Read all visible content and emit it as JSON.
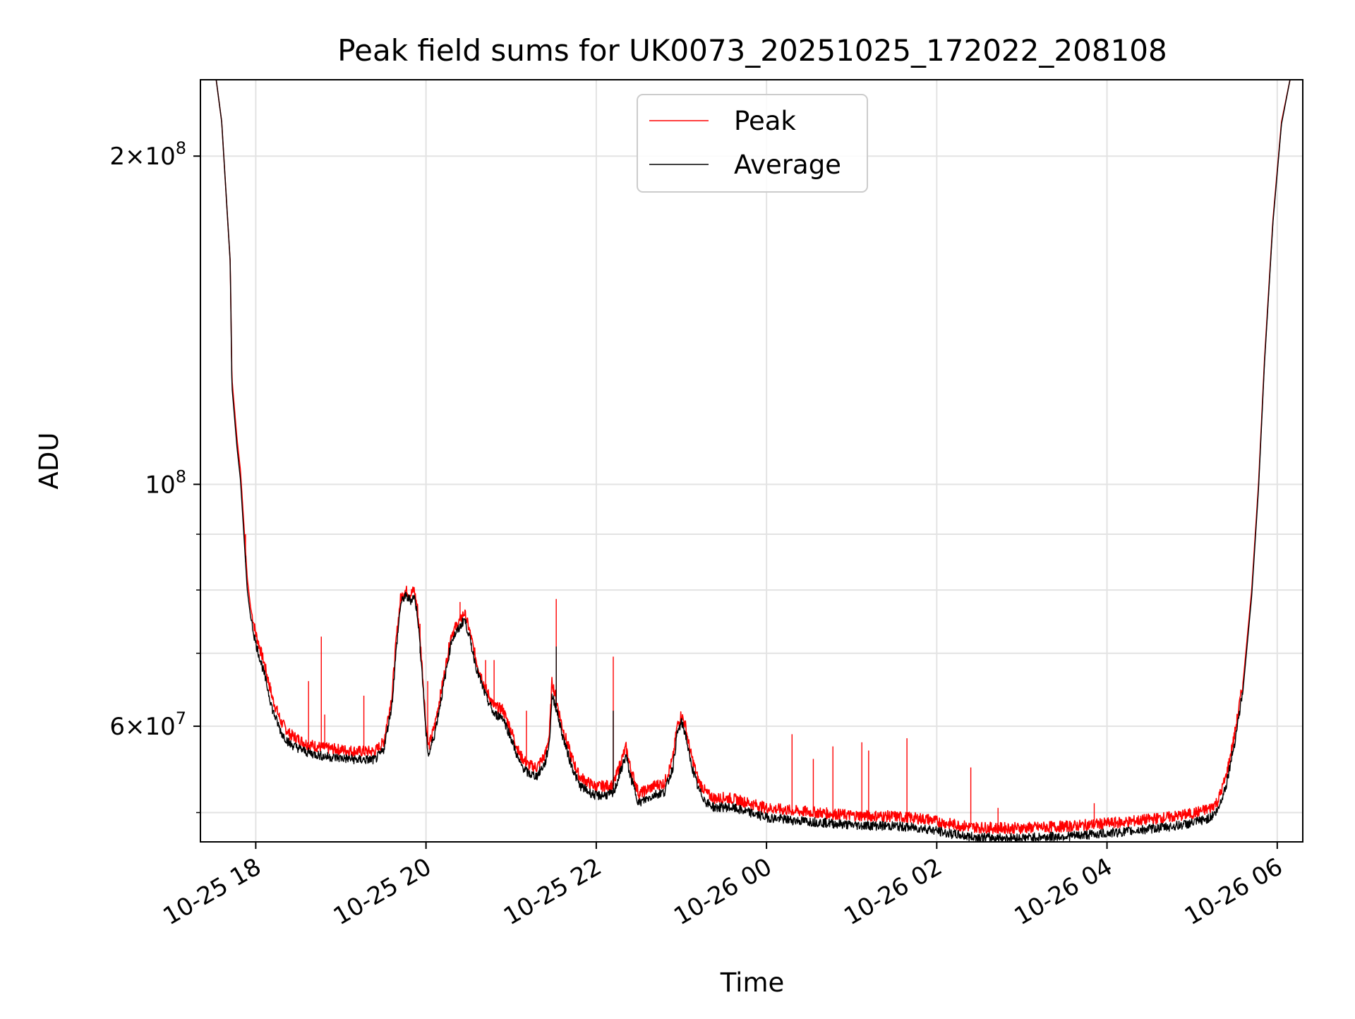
{
  "chart_data": {
    "type": "line",
    "title": "Peak field sums for UK0073_20251025_172022_208108",
    "xlabel": "Time",
    "ylabel": "ADU",
    "yscale": "log",
    "ylim": [
      47000000,
      235000000
    ],
    "xlim_hours": [
      17.35,
      30.3
    ],
    "grid": true,
    "legend_position": "top-center",
    "x_ticks": [
      {
        "hours": 18,
        "label": "10-25 18"
      },
      {
        "hours": 20,
        "label": "10-25 20"
      },
      {
        "hours": 22,
        "label": "10-25 22"
      },
      {
        "hours": 24,
        "label": "10-26 00"
      },
      {
        "hours": 26,
        "label": "10-26 02"
      },
      {
        "hours": 28,
        "label": "10-26 04"
      },
      {
        "hours": 30,
        "label": "10-26 06"
      }
    ],
    "y_major_ticks": [
      {
        "value": 60000000,
        "mantissa": "6",
        "exponent": "7"
      },
      {
        "value": 100000000,
        "mantissa": "",
        "exponent": "8"
      },
      {
        "value": 200000000,
        "mantissa": "2",
        "exponent": "8"
      }
    ],
    "y_minor_ticks": [
      50000000,
      70000000,
      80000000,
      90000000
    ],
    "series": [
      {
        "name": "Peak",
        "color": "#ff0000",
        "points": [
          [
            17.35,
            240000000
          ],
          [
            17.52,
            240000000
          ],
          [
            17.6,
            215000000
          ],
          [
            17.7,
            160000000
          ],
          [
            17.72,
            125000000
          ],
          [
            17.78,
            110000000
          ],
          [
            17.82,
            103000000
          ],
          [
            17.86,
            92000000
          ],
          [
            17.9,
            82000000
          ],
          [
            17.94,
            77000000
          ],
          [
            18.0,
            73000000
          ],
          [
            18.1,
            68500000
          ],
          [
            18.2,
            63500000
          ],
          [
            18.3,
            60500000
          ],
          [
            18.4,
            59000000
          ],
          [
            18.6,
            57800000
          ],
          [
            18.8,
            57300000
          ],
          [
            19.0,
            57100000
          ],
          [
            19.2,
            56900000
          ],
          [
            19.4,
            56900000
          ],
          [
            19.5,
            58000000
          ],
          [
            19.6,
            64000000
          ],
          [
            19.65,
            72000000
          ],
          [
            19.7,
            78500000
          ],
          [
            19.75,
            80000000
          ],
          [
            19.82,
            79300000
          ],
          [
            19.86,
            80000000
          ],
          [
            19.9,
            77000000
          ],
          [
            19.95,
            69000000
          ],
          [
            20.0,
            60000000
          ],
          [
            20.03,
            57400000
          ],
          [
            20.1,
            60000000
          ],
          [
            20.2,
            66000000
          ],
          [
            20.3,
            73000000
          ],
          [
            20.4,
            75000000
          ],
          [
            20.45,
            76300000
          ],
          [
            20.5,
            74000000
          ],
          [
            20.6,
            68500000
          ],
          [
            20.7,
            65000000
          ],
          [
            20.8,
            62500000
          ],
          [
            20.9,
            62200000
          ],
          [
            21.0,
            59500000
          ],
          [
            21.1,
            56500000
          ],
          [
            21.2,
            55300000
          ],
          [
            21.3,
            55000000
          ],
          [
            21.4,
            56500000
          ],
          [
            21.45,
            59000000
          ],
          [
            21.48,
            66000000
          ],
          [
            21.52,
            64000000
          ],
          [
            21.6,
            60000000
          ],
          [
            21.7,
            56500000
          ],
          [
            21.8,
            54000000
          ],
          [
            21.9,
            53300000
          ],
          [
            22.0,
            52800000
          ],
          [
            22.2,
            53000000
          ],
          [
            22.3,
            56000000
          ],
          [
            22.35,
            57400000
          ],
          [
            22.4,
            55000000
          ],
          [
            22.5,
            52000000
          ],
          [
            22.6,
            52500000
          ],
          [
            22.7,
            53000000
          ],
          [
            22.8,
            53200000
          ],
          [
            22.9,
            56000000
          ],
          [
            22.95,
            60000000
          ],
          [
            23.0,
            61500000
          ],
          [
            23.05,
            60000000
          ],
          [
            23.1,
            57000000
          ],
          [
            23.2,
            53500000
          ],
          [
            23.3,
            52000000
          ],
          [
            23.4,
            51500000
          ],
          [
            23.5,
            51600000
          ],
          [
            23.6,
            51500000
          ],
          [
            23.8,
            51000000
          ],
          [
            24.0,
            50500000
          ],
          [
            24.3,
            50200000
          ],
          [
            24.6,
            50000000
          ],
          [
            25.0,
            49700000
          ],
          [
            25.5,
            49600000
          ],
          [
            25.9,
            49300000
          ],
          [
            26.1,
            48900000
          ],
          [
            26.4,
            48500000
          ],
          [
            26.7,
            48400000
          ],
          [
            27.0,
            48400000
          ],
          [
            27.3,
            48500000
          ],
          [
            27.6,
            48600000
          ],
          [
            27.9,
            48800000
          ],
          [
            28.2,
            49000000
          ],
          [
            28.5,
            49300000
          ],
          [
            28.8,
            49600000
          ],
          [
            29.0,
            49900000
          ],
          [
            29.2,
            50400000
          ],
          [
            29.3,
            51200000
          ],
          [
            29.4,
            54000000
          ],
          [
            29.5,
            59000000
          ],
          [
            29.6,
            66000000
          ],
          [
            29.7,
            80000000
          ],
          [
            29.78,
            100000000
          ],
          [
            29.85,
            130000000
          ],
          [
            29.95,
            175000000
          ],
          [
            30.05,
            215000000
          ],
          [
            30.15,
            235000000
          ],
          [
            30.3,
            240000000
          ]
        ],
        "spikes": [
          [
            17.88,
            90000000
          ],
          [
            18.62,
            66000000
          ],
          [
            18.77,
            72500000
          ],
          [
            18.81,
            61500000
          ],
          [
            19.27,
            64000000
          ],
          [
            19.93,
            74500000
          ],
          [
            20.02,
            66000000
          ],
          [
            20.4,
            78000000
          ],
          [
            20.7,
            69000000
          ],
          [
            20.8,
            69000000
          ],
          [
            21.18,
            62000000
          ],
          [
            21.53,
            78500000
          ],
          [
            22.2,
            69500000
          ],
          [
            24.3,
            59000000
          ],
          [
            24.55,
            56000000
          ],
          [
            24.78,
            57500000
          ],
          [
            25.12,
            58000000
          ],
          [
            25.2,
            57000000
          ],
          [
            25.65,
            58500000
          ],
          [
            26.4,
            55000000
          ],
          [
            26.72,
            50500000
          ],
          [
            27.85,
            51000000
          ]
        ]
      },
      {
        "name": "Average",
        "color": "#000000",
        "points": [
          [
            17.35,
            240000000
          ],
          [
            17.52,
            240000000
          ],
          [
            17.6,
            215000000
          ],
          [
            17.7,
            160000000
          ],
          [
            17.72,
            123000000
          ],
          [
            17.78,
            108000000
          ],
          [
            17.82,
            101000000
          ],
          [
            17.86,
            90000000
          ],
          [
            17.9,
            80000000
          ],
          [
            17.94,
            75500000
          ],
          [
            18.0,
            71500000
          ],
          [
            18.1,
            67000000
          ],
          [
            18.2,
            62000000
          ],
          [
            18.3,
            59200000
          ],
          [
            18.4,
            57800000
          ],
          [
            18.6,
            56800000
          ],
          [
            18.8,
            56300000
          ],
          [
            19.0,
            56100000
          ],
          [
            19.2,
            55900000
          ],
          [
            19.4,
            55900000
          ],
          [
            19.5,
            57000000
          ],
          [
            19.6,
            62800000
          ],
          [
            19.65,
            70500000
          ],
          [
            19.7,
            77500000
          ],
          [
            19.75,
            79000000
          ],
          [
            19.82,
            78300000
          ],
          [
            19.86,
            79000000
          ],
          [
            19.9,
            76000000
          ],
          [
            19.95,
            68000000
          ],
          [
            20.0,
            59000000
          ],
          [
            20.03,
            56400000
          ],
          [
            20.1,
            59000000
          ],
          [
            20.2,
            65000000
          ],
          [
            20.3,
            72000000
          ],
          [
            20.4,
            74000000
          ],
          [
            20.45,
            75300000
          ],
          [
            20.5,
            73000000
          ],
          [
            20.6,
            67500000
          ],
          [
            20.7,
            64000000
          ],
          [
            20.8,
            61500000
          ],
          [
            20.9,
            61200000
          ],
          [
            21.0,
            58500000
          ],
          [
            21.1,
            55500000
          ],
          [
            21.2,
            54300000
          ],
          [
            21.3,
            54000000
          ],
          [
            21.4,
            55500000
          ],
          [
            21.45,
            58000000
          ],
          [
            21.48,
            64000000
          ],
          [
            21.52,
            62800000
          ],
          [
            21.6,
            59000000
          ],
          [
            21.7,
            55500000
          ],
          [
            21.8,
            53000000
          ],
          [
            21.9,
            52300000
          ],
          [
            22.0,
            51800000
          ],
          [
            22.2,
            52000000
          ],
          [
            22.3,
            55000000
          ],
          [
            22.35,
            56400000
          ],
          [
            22.4,
            54000000
          ],
          [
            22.5,
            51000000
          ],
          [
            22.6,
            51500000
          ],
          [
            22.7,
            52000000
          ],
          [
            22.8,
            52200000
          ],
          [
            22.9,
            55000000
          ],
          [
            22.95,
            59000000
          ],
          [
            23.0,
            60500000
          ],
          [
            23.05,
            59000000
          ],
          [
            23.1,
            56000000
          ],
          [
            23.2,
            52500000
          ],
          [
            23.3,
            51000000
          ],
          [
            23.4,
            50500000
          ],
          [
            23.5,
            50600000
          ],
          [
            23.6,
            50500000
          ],
          [
            23.8,
            50000000
          ],
          [
            24.0,
            49500000
          ],
          [
            24.3,
            49200000
          ],
          [
            24.6,
            49000000
          ],
          [
            25.0,
            48700000
          ],
          [
            25.5,
            48600000
          ],
          [
            25.9,
            48300000
          ],
          [
            26.1,
            47900000
          ],
          [
            26.4,
            47500000
          ],
          [
            26.7,
            47400000
          ],
          [
            27.0,
            47400000
          ],
          [
            27.3,
            47500000
          ],
          [
            27.6,
            47600000
          ],
          [
            27.9,
            47800000
          ],
          [
            28.2,
            48000000
          ],
          [
            28.5,
            48300000
          ],
          [
            28.8,
            48600000
          ],
          [
            29.0,
            48900000
          ],
          [
            29.2,
            49400000
          ],
          [
            29.3,
            50200000
          ],
          [
            29.4,
            53000000
          ],
          [
            29.5,
            58000000
          ],
          [
            29.6,
            65000000
          ],
          [
            29.7,
            79000000
          ],
          [
            29.78,
            99000000
          ],
          [
            29.85,
            129000000
          ],
          [
            29.95,
            174000000
          ],
          [
            30.05,
            214000000
          ],
          [
            30.15,
            235000000
          ],
          [
            30.3,
            240000000
          ]
        ],
        "spikes": [
          [
            17.88,
            86000000
          ],
          [
            19.93,
            70000000
          ],
          [
            21.53,
            71000000
          ],
          [
            22.2,
            62000000
          ]
        ]
      }
    ]
  }
}
